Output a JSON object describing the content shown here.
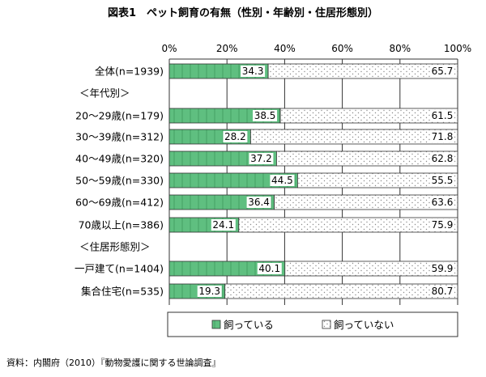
{
  "title": "図表1　ペット飼育の有無（性別・年齢別・住居形態別）",
  "source": "資料：内閣府（2010）『動物愛護に関する世論調査』",
  "colors": {
    "owned": "#5fbf80",
    "not_owned": "#ffffff",
    "border": "#333333",
    "dots": "#9a9a9a"
  },
  "chart_data": {
    "type": "bar",
    "orientation": "horizontal",
    "stacked": true,
    "xlim": [
      0,
      100
    ],
    "x_ticks": [
      "0%",
      "20%",
      "40%",
      "60%",
      "80%",
      "100%"
    ],
    "rows": [
      {
        "kind": "category",
        "label": "全体(n=1939)",
        "values": [
          34.3,
          65.7
        ]
      },
      {
        "kind": "group",
        "label": "＜年代別＞"
      },
      {
        "kind": "category",
        "label": "20～29歳(n=179)",
        "values": [
          38.5,
          61.5
        ]
      },
      {
        "kind": "category",
        "label": "30～39歳(n=312)",
        "values": [
          28.2,
          71.8
        ]
      },
      {
        "kind": "category",
        "label": "40～49歳(n=320)",
        "values": [
          37.2,
          62.8
        ]
      },
      {
        "kind": "category",
        "label": "50～59歳(n=330)",
        "values": [
          44.5,
          55.5
        ]
      },
      {
        "kind": "category",
        "label": "60～69歳(n=412)",
        "values": [
          36.4,
          63.6
        ]
      },
      {
        "kind": "category",
        "label": "70歳以上(n=386)",
        "values": [
          24.1,
          75.9
        ]
      },
      {
        "kind": "group",
        "label": "＜住居形態別＞"
      },
      {
        "kind": "category",
        "label": "一戸建て(n=1404)",
        "values": [
          40.1,
          59.9
        ]
      },
      {
        "kind": "category",
        "label": "集合住宅(n=535)",
        "values": [
          19.3,
          80.7
        ]
      }
    ],
    "series": [
      {
        "name": "飼っている",
        "pattern": "green-hatched"
      },
      {
        "name": "飼っていない",
        "pattern": "dotted"
      }
    ],
    "legend": "bottom"
  }
}
